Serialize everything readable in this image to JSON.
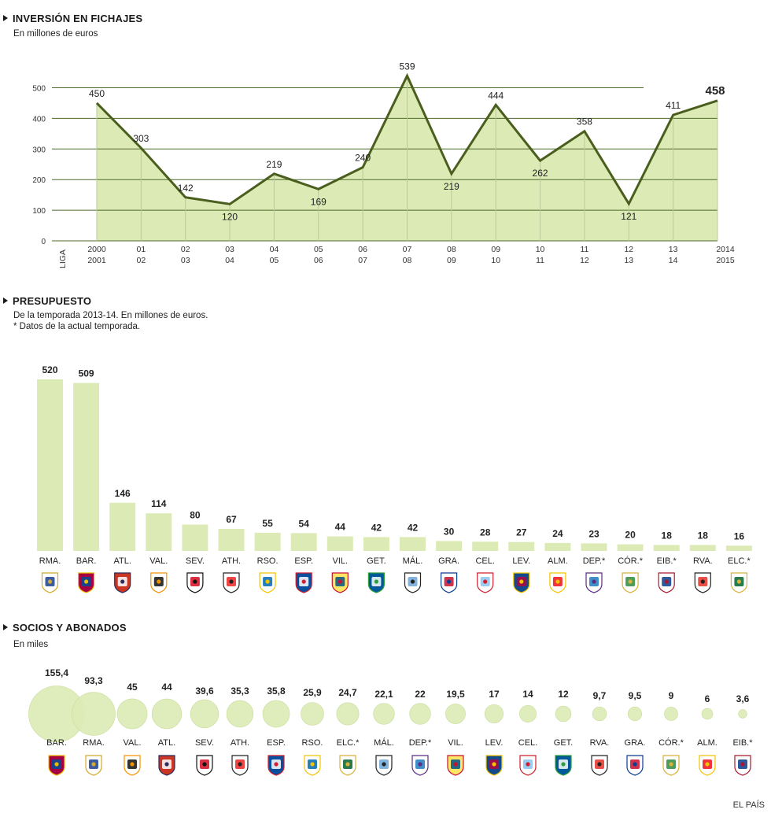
{
  "sections": {
    "fichajes": {
      "title": "INVERSIÓN EN FICHAJES",
      "subtitle": "En millones de euros"
    },
    "presupuesto": {
      "title": "PRESUPUESTO",
      "subtitle": "De la temporada 2013-14. En millones de euros.",
      "note": "* Datos de la actual temporada."
    },
    "socios": {
      "title": "SOCIOS Y ABONADOS",
      "subtitle": "En miles"
    }
  },
  "credit": "EL PAÍS",
  "colors": {
    "fill": "#dcebb5",
    "line": "#4a5e1e",
    "grid": "#4e6a2a",
    "bar": "#dcebb5",
    "bubble": "#dcebb5"
  },
  "chart_data": [
    {
      "type": "area",
      "title": "INVERSIÓN EN FICHAJES",
      "subtitle": "En millones de euros",
      "xlabel": "LIGA",
      "categories_top": [
        "2000",
        "01",
        "02",
        "03",
        "04",
        "05",
        "06",
        "07",
        "08",
        "09",
        "10",
        "11",
        "12",
        "13",
        "2014"
      ],
      "categories_bottom": [
        "2001",
        "02",
        "03",
        "04",
        "05",
        "06",
        "07",
        "08",
        "09",
        "10",
        "11",
        "12",
        "13",
        "14",
        "2015"
      ],
      "values": [
        450,
        303,
        142,
        120,
        219,
        169,
        240,
        539,
        219,
        444,
        262,
        358,
        121,
        411,
        458
      ],
      "labels": [
        "450",
        "303",
        "142",
        "120",
        "219",
        "169",
        "240",
        "539",
        "219",
        "444",
        "262",
        "358",
        "121",
        "411",
        "458"
      ],
      "ylim": [
        0,
        550
      ],
      "yticks": [
        0,
        100,
        200,
        300,
        400,
        500
      ],
      "grid": true
    },
    {
      "type": "bar",
      "title": "PRESUPUESTO",
      "subtitle": "De la temporada 2013-14. En millones de euros.",
      "categories": [
        "RMA.",
        "BAR.",
        "ATL.",
        "VAL.",
        "SEV.",
        "ATH.",
        "RSO.",
        "ESP.",
        "VIL.",
        "GET.",
        "MÁL.",
        "GRA.",
        "CEL.",
        "LEV.",
        "ALM.",
        "DEP.*",
        "CÓR.*",
        "EIB.*",
        "RVA.",
        "ELC.*"
      ],
      "values": [
        520,
        509,
        146,
        114,
        80,
        67,
        55,
        54,
        44,
        42,
        42,
        30,
        28,
        27,
        24,
        23,
        20,
        18,
        18,
        16
      ],
      "icons": [
        "real-madrid-crest-icon",
        "barcelona-crest-icon",
        "atletico-crest-icon",
        "valencia-crest-icon",
        "sevilla-crest-icon",
        "athletic-crest-icon",
        "real-sociedad-crest-icon",
        "espanyol-crest-icon",
        "villarreal-crest-icon",
        "getafe-crest-icon",
        "malaga-crest-icon",
        "granada-crest-icon",
        "celta-crest-icon",
        "levante-crest-icon",
        "almeria-crest-icon",
        "deportivo-crest-icon",
        "cordoba-crest-icon",
        "eibar-crest-icon",
        "rayo-crest-icon",
        "elche-crest-icon"
      ]
    },
    {
      "type": "bubble",
      "title": "SOCIOS Y ABONADOS",
      "subtitle": "En miles",
      "categories": [
        "BAR.",
        "RMA.",
        "VAL.",
        "ATL.",
        "SEV.",
        "ATH.",
        "ESP.",
        "RSO.",
        "ELC.*",
        "MÁL.",
        "DEP.*",
        "VIL.",
        "LEV.",
        "CEL.",
        "GET.",
        "RVA.",
        "GRA.",
        "CÓR.*",
        "ALM.",
        "EIB.*"
      ],
      "values": [
        155.4,
        93.3,
        45,
        44,
        39.6,
        35.3,
        35.8,
        25.9,
        24.7,
        22.1,
        22,
        19.5,
        17,
        14,
        12,
        9.7,
        9.5,
        9,
        6,
        3.6
      ],
      "labels": [
        "155,4",
        "93,3",
        "45",
        "44",
        "39,6",
        "35,3",
        "35,8",
        "25,9",
        "24,7",
        "22,1",
        "22",
        "19,5",
        "17",
        "14",
        "12",
        "9,7",
        "9,5",
        "9",
        "6",
        "3,6"
      ],
      "icons": [
        "barcelona-crest-icon",
        "real-madrid-crest-icon",
        "valencia-crest-icon",
        "atletico-crest-icon",
        "sevilla-crest-icon",
        "athletic-crest-icon",
        "espanyol-crest-icon",
        "real-sociedad-crest-icon",
        "elche-crest-icon",
        "malaga-crest-icon",
        "deportivo-crest-icon",
        "villarreal-crest-icon",
        "levante-crest-icon",
        "celta-crest-icon",
        "getafe-crest-icon",
        "rayo-crest-icon",
        "granada-crest-icon",
        "cordoba-crest-icon",
        "almeria-crest-icon",
        "eibar-crest-icon"
      ]
    }
  ]
}
